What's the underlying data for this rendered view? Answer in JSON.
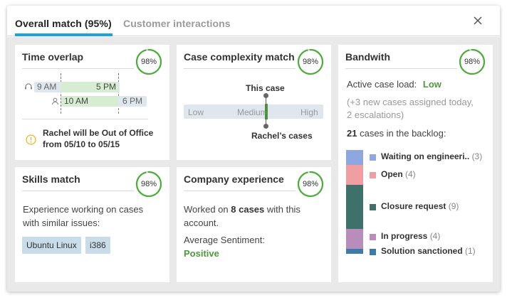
{
  "tabs": [
    {
      "label": "Overall match (95%)",
      "active": true
    },
    {
      "label": "Customer interactions",
      "active": false
    }
  ],
  "cards": {
    "time_overlap": {
      "title": "Time overlap",
      "score": "98%",
      "score_value": 0.98,
      "customer_start": "9 AM",
      "customer_end": "5 PM",
      "agent_start": "10 AM",
      "agent_end": "6 PM",
      "warning": "Rachel will be Out of Office",
      "warning_line2": "from 05/10 to 05/15"
    },
    "case_complexity": {
      "title": "Case complexity match",
      "score": "98%",
      "score_value": 0.98,
      "this_case_label": "This case",
      "rachel_label": "Rachel’s cases",
      "scale": [
        "Low",
        "Medium",
        "High"
      ]
    },
    "bandwidth": {
      "title": "Bandwith",
      "score": "98%",
      "score_value": 0.98,
      "load_label": "Active case load:",
      "load_value": "Low",
      "note_line1": "(+3 new cases assigned today,",
      "note_line2": "2 escalations)",
      "backlog_count": "21",
      "backlog_label": "cases in the backlog:",
      "breakdown": [
        {
          "label": "Waiting on engineeri..",
          "count": "(3)",
          "value": 3,
          "color": "#8fa7e0"
        },
        {
          "label": "Open",
          "count": "(4)",
          "value": 4,
          "color": "#ef9ea2"
        },
        {
          "label": "Closure request",
          "count": "(9)",
          "value": 9,
          "color": "#3e716a"
        },
        {
          "label": "In progress",
          "count": "(4)",
          "value": 4,
          "color": "#b98dbb"
        },
        {
          "label": "Solution sanctioned",
          "count": "(1)",
          "value": 1,
          "color": "#3f7ba8"
        }
      ]
    },
    "skills": {
      "title": "Skills match",
      "score": "98%",
      "score_value": 0.98,
      "line1": "Experience working on cases",
      "line2": "with similar issues:",
      "tags": [
        "Ubuntu Linux",
        "i386"
      ]
    },
    "company": {
      "title": "Company experience",
      "score": "98%",
      "score_value": 0.98,
      "worked_prefix": "Worked on",
      "worked_count": "8 cases",
      "worked_suffix": "with this",
      "worked_line2": "account.",
      "sentiment_label": "Average Sentiment:",
      "sentiment_value": "Positive"
    }
  },
  "colors": {
    "accent": "#1aa3dd",
    "gauge": "#4cad3b",
    "positive": "#4c9b3a",
    "warning": "#f0b429"
  }
}
